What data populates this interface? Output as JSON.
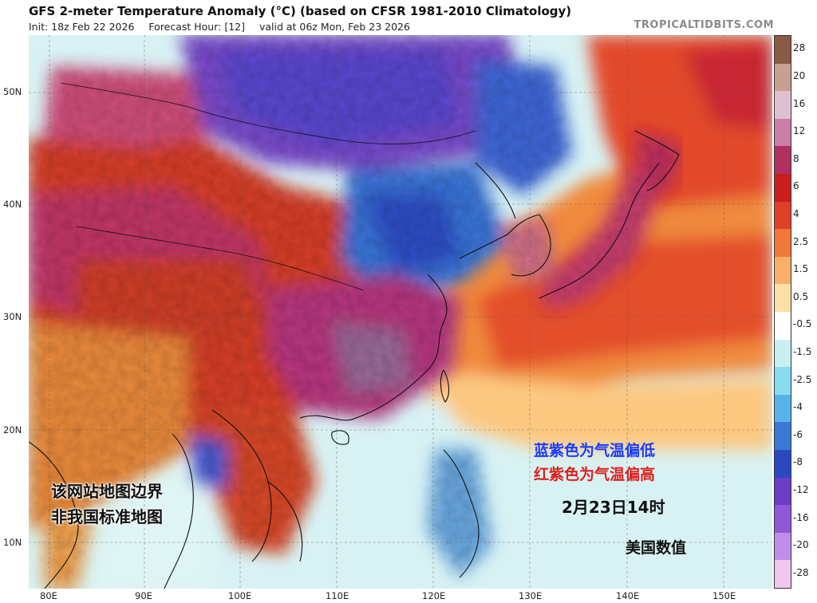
{
  "header": {
    "title": "GFS 2-meter Temperature Anomaly (°C) (based on CFSR 1981-2010 Climatology)",
    "init": "Init: 18z Feb 22 2026",
    "forecast_hour": "Forecast Hour: [12]",
    "valid": "valid at 06z Mon, Feb 23 2026",
    "brand": "TROPICALTIDBITS.COM"
  },
  "map": {
    "lat_labels": [
      "50N",
      "40N",
      "30N",
      "20N",
      "10N"
    ],
    "lon_labels": [
      "80E",
      "90E",
      "100E",
      "110E",
      "120E",
      "130E",
      "140E",
      "150E"
    ]
  },
  "colorbar": {
    "ticks": [
      "28",
      "20",
      "16",
      "12",
      "8",
      "6",
      "4",
      "2.5",
      "1.5",
      "0.5",
      "-0.5",
      "-1.5",
      "-2.5",
      "-4",
      "-6",
      "-8",
      "-12",
      "-16",
      "-20",
      "-28"
    ],
    "colors": [
      "#8a5a44",
      "#c8a090",
      "#e0c0d0",
      "#c97fa8",
      "#b03060",
      "#c81e1e",
      "#e0402a",
      "#f07838",
      "#f8b068",
      "#fde0a8",
      "#ffffff",
      "#c8f0f0",
      "#88dcf0",
      "#58b4e8",
      "#3c78d8",
      "#2c48c0",
      "#6a3cc8",
      "#9058d8",
      "#c08ee8",
      "#f0c8f0"
    ]
  },
  "annotations": {
    "legend_blue": "蓝紫色为气温偏低",
    "legend_red": "红紫色为气温偏高",
    "date": "2月23日14时",
    "source": "美国数值",
    "disclaimer_line1": "该网站地图边界",
    "disclaimer_line2": "非我国标准地图"
  }
}
